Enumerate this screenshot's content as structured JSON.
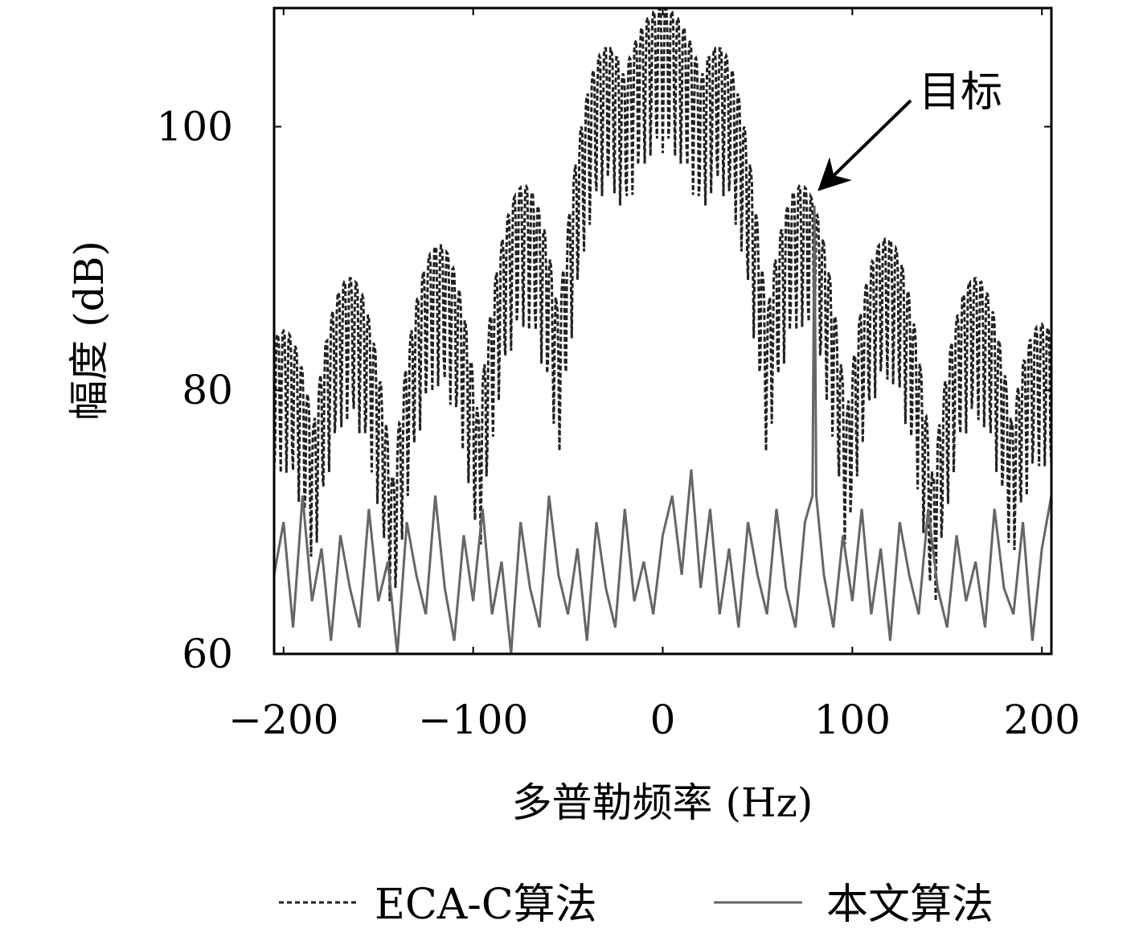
{
  "chart_data": {
    "type": "line",
    "title": "",
    "xlabel": "多普勒频率 (Hz)",
    "ylabel": "幅度 (dB)",
    "xlim": [
      -205,
      205
    ],
    "ylim": [
      60,
      109
    ],
    "x_ticks": [
      -200,
      -100,
      0,
      100,
      200
    ],
    "x_tick_labels": [
      "−200",
      "−100",
      "0",
      "100",
      "200"
    ],
    "y_ticks": [
      60,
      80,
      100
    ],
    "y_tick_labels": [
      "60",
      "80",
      "100"
    ],
    "grid": false,
    "legend_position": "bottom",
    "annotation": {
      "text": "目标",
      "x": 80,
      "y": 95
    },
    "series": [
      {
        "name": "ECA-C算法",
        "style": "dashed",
        "color": "#222222",
        "lobe_centers": [
          -200,
          -165,
          -118,
          -73,
          -29,
          0,
          29,
          73,
          118,
          165,
          200
        ],
        "lobe_peaks": [
          84.5,
          88.5,
          91,
          95.5,
          106,
          109,
          106,
          95.5,
          91.5,
          88.5,
          85
        ],
        "floor": 60
      },
      {
        "name": "本文算法",
        "style": "solid",
        "color": "#666666",
        "x": [
          -205,
          -200,
          -195,
          -190,
          -185,
          -180,
          -175,
          -170,
          -165,
          -160,
          -155,
          -150,
          -145,
          -140,
          -135,
          -130,
          -125,
          -120,
          -115,
          -110,
          -105,
          -100,
          -95,
          -90,
          -85,
          -80,
          -75,
          -70,
          -65,
          -60,
          -55,
          -50,
          -45,
          -40,
          -35,
          -30,
          -25,
          -20,
          -15,
          -10,
          -5,
          0,
          5,
          10,
          15,
          20,
          25,
          30,
          35,
          40,
          45,
          50,
          55,
          60,
          65,
          70,
          75,
          79,
          80,
          81,
          85,
          90,
          95,
          100,
          105,
          110,
          115,
          120,
          125,
          130,
          135,
          140,
          145,
          150,
          155,
          160,
          165,
          170,
          175,
          180,
          185,
          190,
          195,
          200,
          205
        ],
        "y": [
          66,
          70,
          62,
          72,
          64,
          68,
          61,
          69,
          65,
          62,
          71,
          64,
          67,
          60,
          70,
          66,
          63,
          72,
          65,
          61,
          69,
          64,
          71,
          63,
          67,
          60,
          70,
          65,
          62,
          72,
          66,
          63,
          68,
          61,
          70,
          65,
          62,
          71,
          64,
          67,
          63,
          69,
          72,
          66,
          74,
          65,
          71,
          63,
          68,
          62,
          70,
          66,
          63,
          71,
          65,
          62,
          70,
          72,
          94,
          72,
          66,
          62,
          69,
          64,
          71,
          63,
          68,
          61,
          70,
          66,
          63,
          71,
          65,
          62,
          69,
          64,
          67,
          62,
          71,
          65,
          63,
          70,
          61,
          68,
          72
        ]
      }
    ]
  }
}
